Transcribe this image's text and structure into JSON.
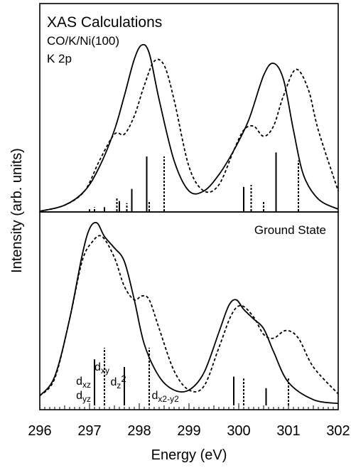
{
  "chart_data": [
    {
      "type": "line",
      "panel": "top",
      "annotations": [
        "XAS Calculations",
        "CO/K/Ni(100)",
        "K 2p"
      ],
      "xlim": [
        296,
        302
      ],
      "ylabel": "Intensity (arb. units)",
      "series": [
        {
          "style": "solid",
          "x": [
            296.0,
            296.5,
            296.9,
            297.2,
            297.5,
            297.7,
            297.9,
            298.05,
            298.2,
            298.4,
            298.7,
            299.0,
            299.3,
            299.6,
            299.9,
            300.2,
            300.5,
            300.7,
            300.9,
            301.1,
            301.3,
            301.6,
            302.0
          ],
          "y": [
            0.0,
            0.03,
            0.1,
            0.22,
            0.4,
            0.57,
            0.75,
            0.82,
            0.78,
            0.55,
            0.25,
            0.1,
            0.1,
            0.18,
            0.3,
            0.45,
            0.67,
            0.73,
            0.65,
            0.4,
            0.18,
            0.06,
            0.01
          ]
        },
        {
          "style": "dashed",
          "x": [
            296.0,
            296.5,
            296.9,
            297.2,
            297.5,
            297.7,
            297.9,
            298.1,
            298.3,
            298.5,
            298.7,
            299.0,
            299.3,
            299.6,
            299.9,
            300.1,
            300.3,
            300.5,
            300.7,
            300.9,
            301.15,
            301.4,
            301.6,
            302.0
          ],
          "y": [
            0.0,
            0.03,
            0.1,
            0.25,
            0.38,
            0.38,
            0.47,
            0.62,
            0.74,
            0.72,
            0.55,
            0.22,
            0.1,
            0.13,
            0.3,
            0.4,
            0.42,
            0.37,
            0.42,
            0.57,
            0.7,
            0.6,
            0.4,
            0.1
          ]
        }
      ],
      "sticks": {
        "solid": [
          {
            "x": 297.0,
            "h": 0.01
          },
          {
            "x": 297.3,
            "h": 0.02
          },
          {
            "x": 297.6,
            "h": 0.05
          },
          {
            "x": 297.85,
            "h": 0.11
          },
          {
            "x": 298.15,
            "h": 0.27
          },
          {
            "x": 300.1,
            "h": 0.12
          },
          {
            "x": 300.75,
            "h": 0.29
          }
        ],
        "dashed": [
          {
            "x": 297.1,
            "h": 0.02
          },
          {
            "x": 297.55,
            "h": 0.07
          },
          {
            "x": 297.75,
            "h": 0.04
          },
          {
            "x": 298.2,
            "h": 0.05
          },
          {
            "x": 298.5,
            "h": 0.27
          },
          {
            "x": 300.25,
            "h": 0.13
          },
          {
            "x": 300.5,
            "h": 0.05
          },
          {
            "x": 301.2,
            "h": 0.25
          }
        ]
      }
    },
    {
      "type": "line",
      "panel": "bottom",
      "annotations": [
        "Ground State"
      ],
      "xlabel": "Energy (eV)",
      "xlim": [
        296,
        302
      ],
      "xticks": [
        296,
        297,
        298,
        299,
        300,
        301,
        302
      ],
      "series": [
        {
          "style": "solid",
          "x": [
            296.0,
            296.3,
            296.6,
            296.85,
            297.0,
            297.15,
            297.3,
            297.5,
            297.7,
            297.9,
            298.1,
            298.4,
            298.7,
            299.0,
            299.3,
            299.6,
            299.8,
            299.95,
            300.1,
            300.3,
            300.5,
            300.7,
            301.0,
            301.5,
            302.0
          ],
          "y": [
            0.05,
            0.15,
            0.45,
            0.78,
            0.92,
            0.95,
            0.88,
            0.82,
            0.75,
            0.55,
            0.32,
            0.15,
            0.08,
            0.08,
            0.17,
            0.38,
            0.52,
            0.55,
            0.5,
            0.45,
            0.4,
            0.28,
            0.12,
            0.03,
            0.01
          ]
        },
        {
          "style": "dashed",
          "x": [
            296.0,
            296.3,
            296.6,
            296.85,
            297.05,
            297.25,
            297.5,
            297.7,
            297.9,
            298.05,
            298.2,
            298.4,
            298.7,
            299.0,
            299.3,
            299.6,
            299.85,
            300.05,
            300.3,
            300.5,
            300.7,
            300.95,
            301.2,
            301.5,
            302.0
          ],
          "y": [
            0.05,
            0.14,
            0.45,
            0.75,
            0.85,
            0.88,
            0.77,
            0.62,
            0.55,
            0.57,
            0.55,
            0.4,
            0.18,
            0.08,
            0.1,
            0.3,
            0.47,
            0.52,
            0.46,
            0.37,
            0.35,
            0.39,
            0.35,
            0.2,
            0.06
          ]
        }
      ],
      "sticks": {
        "solid": [
          {
            "x": 297.1,
            "h": 0.24
          },
          {
            "x": 297.7,
            "h": 0.2
          },
          {
            "x": 299.9,
            "h": 0.15
          },
          {
            "x": 300.55,
            "h": 0.09
          }
        ],
        "dashed": [
          {
            "x": 297.3,
            "h": 0.3
          },
          {
            "x": 298.2,
            "h": 0.3
          },
          {
            "x": 300.1,
            "h": 0.14
          },
          {
            "x": 301.0,
            "h": 0.14
          }
        ]
      },
      "stick_labels": [
        {
          "base": "d",
          "sub": "xz",
          "sup": "",
          "x": 296.88,
          "level": "upper"
        },
        {
          "base": "d",
          "sub": "yz",
          "sup": "",
          "x": 296.88,
          "level": "lower"
        },
        {
          "base": "d",
          "sub": "xy",
          "sup": "",
          "x": 297.25,
          "level": "top"
        },
        {
          "base": "d",
          "sub": "z",
          "sup": "2",
          "x": 297.58,
          "level": "mid"
        },
        {
          "base": "d",
          "sub": "x2-y2",
          "sup": "",
          "x": 298.25,
          "level": "lower"
        }
      ]
    }
  ]
}
